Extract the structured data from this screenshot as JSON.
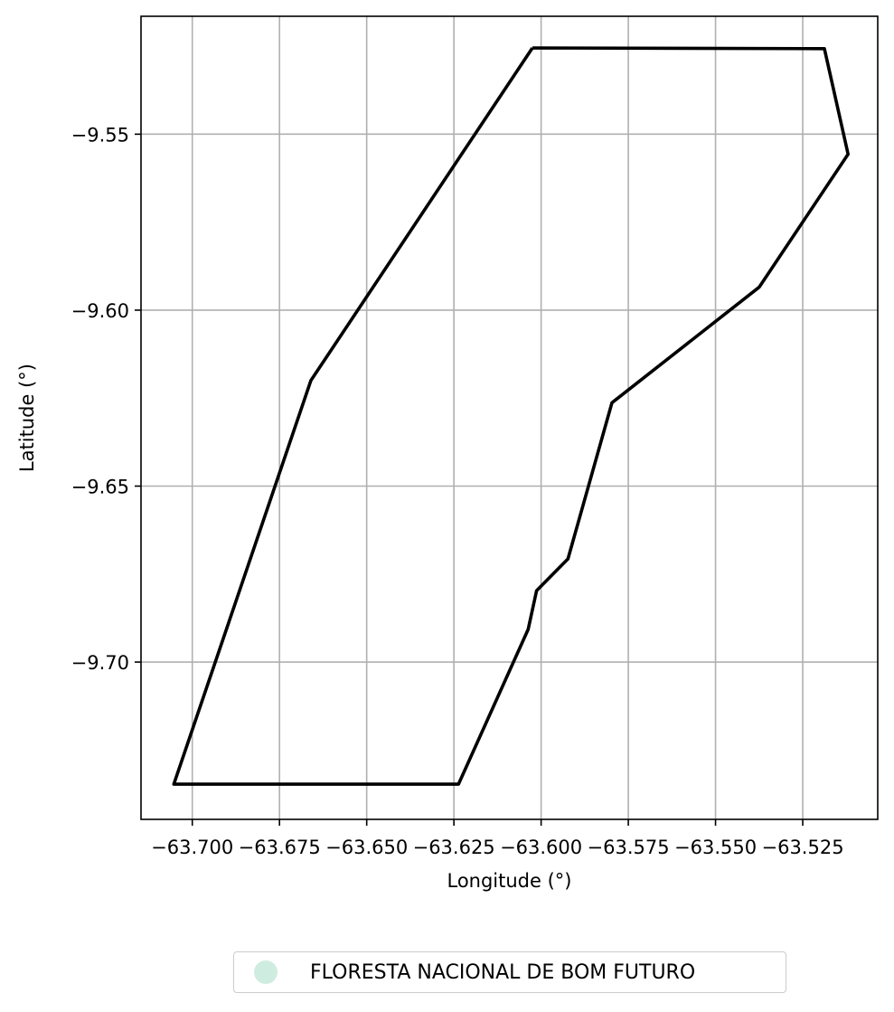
{
  "chart_data": {
    "type": "map",
    "xlabel": "Longitude (°)",
    "ylabel": "Latitude (°)",
    "xlim": [
      -63.7147,
      -63.5035
    ],
    "ylim": [
      -9.7447,
      -9.5165
    ],
    "x_ticks": [
      -63.7,
      -63.675,
      -63.65,
      -63.625,
      -63.6,
      -63.575,
      -63.55,
      -63.525
    ],
    "x_tick_labels": [
      "−63.700",
      "−63.675",
      "−63.650",
      "−63.625",
      "−63.600",
      "−63.575",
      "−63.550",
      "−63.525"
    ],
    "y_ticks": [
      -9.55,
      -9.6,
      -9.65,
      -9.7
    ],
    "y_tick_labels": [
      "−9.55",
      "−9.60",
      "−9.65",
      "−9.70"
    ],
    "grid": true,
    "legend_placement": "below",
    "series": [
      {
        "name": "FLORESTA NACIONAL DE BOM FUTURO",
        "color": "#cfece0",
        "outline_color": "#000000",
        "polygon": [
          [
            -63.6025,
            -9.5255
          ],
          [
            -63.5188,
            -9.5257
          ],
          [
            -63.512,
            -9.5557
          ],
          [
            -63.5375,
            -9.5935
          ],
          [
            -63.5797,
            -9.6263
          ],
          [
            -63.5923,
            -9.6707
          ],
          [
            -63.6013,
            -9.6797
          ],
          [
            -63.6037,
            -9.6907
          ],
          [
            -63.6237,
            -9.7347
          ],
          [
            -63.7053,
            -9.7347
          ],
          [
            -63.666,
            -9.62
          ],
          [
            -63.6025,
            -9.5255
          ]
        ]
      }
    ]
  }
}
